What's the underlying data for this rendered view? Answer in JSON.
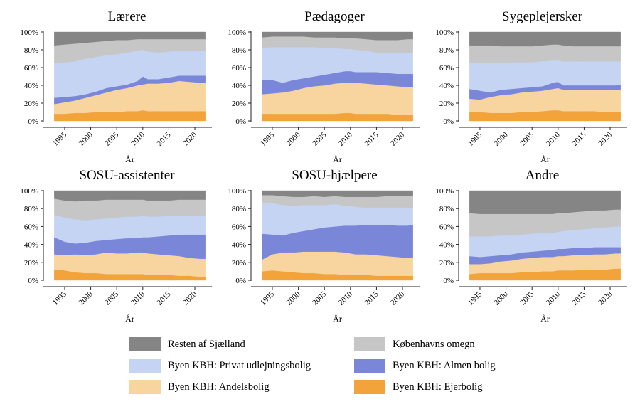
{
  "chart_data": {
    "type": "area",
    "stacked": true,
    "normalized_percent": true,
    "xlabel": "År",
    "ylabel": "",
    "ylim": [
      0,
      100
    ],
    "yticks": [
      "0%",
      "20%",
      "40%",
      "60%",
      "80%",
      "100%"
    ],
    "x": [
      1993,
      1995,
      1997,
      1999,
      2001,
      2003,
      2005,
      2007,
      2009,
      2010,
      2011,
      2013,
      2015,
      2017,
      2019,
      2021,
      2022
    ],
    "category_order": [
      "Byen KBH: Ejerbolig",
      "Byen KBH: Andelsbolig",
      "Byen KBH: Almen bolig",
      "Byen KBH: Privat udlejningsbolig",
      "Københavns omegn",
      "Resten af Sjælland"
    ],
    "colors": [
      "#f2a33a",
      "#f8d49e",
      "#7a87d9",
      "#c5d4f3",
      "#c6c6c6",
      "#858585"
    ],
    "legend": [
      {
        "label": "Resten af Sjælland",
        "color": "#858585"
      },
      {
        "label": "Københavns omegn",
        "color": "#c6c6c6"
      },
      {
        "label": "Byen KBH: Privat udlejningsbolig",
        "color": "#c5d4f3"
      },
      {
        "label": "Byen KBH: Almen bolig",
        "color": "#7a87d9"
      },
      {
        "label": "Byen KBH: Andelsbolig",
        "color": "#f8d49e"
      },
      {
        "label": "Byen KBH: Ejerbolig",
        "color": "#f2a33a"
      }
    ],
    "panels": [
      {
        "title": "Lærere",
        "xticks": [
          "1995",
          "2000",
          "2005",
          "2010",
          "2015",
          "2020"
        ],
        "cumulative": [
          [
            8,
            8,
            9,
            9,
            10,
            10,
            10,
            11,
            11,
            12,
            11,
            11,
            11,
            11,
            11,
            11,
            11
          ],
          [
            19,
            21,
            23,
            26,
            29,
            32,
            35,
            37,
            40,
            41,
            42,
            42,
            43,
            45,
            44,
            43,
            43
          ],
          [
            26,
            27,
            28,
            30,
            33,
            37,
            39,
            41,
            45,
            50,
            47,
            47,
            49,
            51,
            51,
            51,
            51
          ],
          [
            65,
            66,
            67,
            70,
            72,
            74,
            75,
            77,
            79,
            80,
            78,
            77,
            78,
            79,
            79,
            79,
            79
          ],
          [
            85,
            86,
            87,
            88,
            89,
            90,
            91,
            91,
            92,
            92,
            92,
            92,
            92,
            92,
            92,
            92,
            92
          ]
        ]
      },
      {
        "title": "Pædagoger",
        "xticks": [
          "1995",
          "2000",
          "2005",
          "2010",
          "2015",
          "2020"
        ],
        "cumulative": [
          [
            8,
            8,
            8,
            8,
            8,
            8,
            8,
            8,
            9,
            9,
            8,
            8,
            8,
            8,
            7,
            7,
            7
          ],
          [
            30,
            31,
            32,
            34,
            37,
            39,
            40,
            42,
            43,
            43,
            43,
            42,
            41,
            40,
            39,
            38,
            38
          ],
          [
            46,
            46,
            43,
            46,
            48,
            50,
            52,
            54,
            56,
            56,
            55,
            55,
            55,
            54,
            53,
            53,
            53
          ],
          [
            82,
            83,
            83,
            83,
            83,
            83,
            82,
            82,
            81,
            81,
            80,
            79,
            77,
            77,
            77,
            77,
            77
          ],
          [
            94,
            95,
            95,
            95,
            95,
            94,
            94,
            94,
            93,
            93,
            93,
            92,
            91,
            91,
            91,
            92,
            92
          ]
        ]
      },
      {
        "title": "Sygeplejersker",
        "xticks": [
          "1995",
          "2000",
          "2005",
          "2010",
          "2015",
          "2020"
        ],
        "cumulative": [
          [
            10,
            10,
            9,
            9,
            9,
            10,
            10,
            11,
            12,
            12,
            11,
            11,
            11,
            11,
            10,
            10,
            10
          ],
          [
            25,
            24,
            27,
            29,
            30,
            32,
            33,
            34,
            36,
            37,
            35,
            35,
            35,
            35,
            35,
            35,
            35
          ],
          [
            36,
            34,
            32,
            35,
            36,
            37,
            38,
            39,
            43,
            44,
            40,
            40,
            40,
            40,
            40,
            40,
            41
          ],
          [
            66,
            65,
            65,
            65,
            66,
            66,
            66,
            67,
            68,
            68,
            67,
            67,
            67,
            67,
            67,
            67,
            67
          ],
          [
            85,
            85,
            85,
            84,
            84,
            84,
            84,
            85,
            86,
            86,
            85,
            84,
            84,
            84,
            84,
            84,
            84
          ]
        ]
      },
      {
        "title": "SOSU-assistenter",
        "xticks": [
          "1995",
          "2000",
          "2005",
          "2010",
          "2015",
          "2020"
        ],
        "cumulative": [
          [
            12,
            11,
            9,
            8,
            8,
            7,
            7,
            7,
            7,
            7,
            6,
            6,
            6,
            5,
            5,
            4,
            4
          ],
          [
            29,
            28,
            29,
            28,
            29,
            31,
            30,
            30,
            31,
            31,
            30,
            29,
            28,
            27,
            25,
            24,
            24
          ],
          [
            48,
            43,
            41,
            42,
            44,
            45,
            46,
            47,
            47,
            48,
            48,
            49,
            50,
            51,
            51,
            51,
            51
          ],
          [
            73,
            70,
            68,
            67,
            68,
            69,
            70,
            71,
            71,
            72,
            71,
            71,
            72,
            72,
            72,
            72,
            72
          ],
          [
            91,
            89,
            88,
            89,
            89,
            90,
            90,
            90,
            90,
            90,
            89,
            89,
            89,
            90,
            90,
            90,
            90
          ]
        ]
      },
      {
        "title": "SOSU-hjælpere",
        "xticks": [
          "1995",
          "2000",
          "2005",
          "2010",
          "2015",
          "2020"
        ],
        "cumulative": [
          [
            10,
            11,
            10,
            9,
            8,
            8,
            7,
            7,
            6,
            6,
            6,
            6,
            5,
            5,
            5,
            5,
            5
          ],
          [
            23,
            29,
            31,
            31,
            32,
            32,
            32,
            32,
            31,
            30,
            29,
            29,
            28,
            27,
            26,
            25,
            25
          ],
          [
            52,
            51,
            50,
            53,
            55,
            57,
            59,
            60,
            61,
            61,
            61,
            62,
            62,
            62,
            61,
            61,
            62
          ],
          [
            87,
            86,
            84,
            83,
            84,
            84,
            84,
            85,
            83,
            83,
            82,
            81,
            81,
            81,
            81,
            81,
            81
          ],
          [
            95,
            95,
            94,
            93,
            93,
            94,
            93,
            94,
            93,
            93,
            93,
            93,
            93,
            94,
            94,
            94,
            94
          ]
        ]
      },
      {
        "title": "Andre",
        "xticks": [
          "1995",
          "2000",
          "2005",
          "2010",
          "2015",
          "2020"
        ],
        "cumulative": [
          [
            7,
            8,
            8,
            8,
            8,
            9,
            9,
            10,
            10,
            11,
            11,
            11,
            12,
            12,
            12,
            13,
            13
          ],
          [
            18,
            18,
            19,
            21,
            22,
            24,
            25,
            26,
            26,
            27,
            27,
            28,
            28,
            29,
            29,
            30,
            30
          ],
          [
            27,
            26,
            27,
            28,
            29,
            31,
            32,
            33,
            34,
            35,
            35,
            36,
            36,
            37,
            37,
            37,
            37
          ],
          [
            49,
            49,
            49,
            50,
            50,
            51,
            52,
            53,
            53,
            54,
            55,
            56,
            57,
            58,
            59,
            60,
            60
          ],
          [
            75,
            74,
            74,
            74,
            74,
            74,
            74,
            74,
            74,
            75,
            75,
            76,
            77,
            78,
            78,
            79,
            79
          ]
        ]
      }
    ]
  }
}
